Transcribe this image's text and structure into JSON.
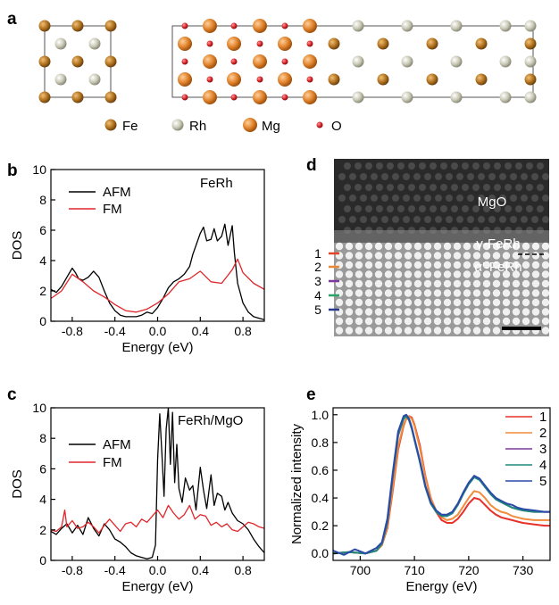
{
  "panels": {
    "a": "a",
    "b": "b",
    "c": "c",
    "d": "d",
    "e": "e"
  },
  "legend_a": [
    {
      "label": "Fe",
      "color": "#b3741f"
    },
    {
      "label": "Rh",
      "color": "#c8c8b4"
    },
    {
      "label": "Mg",
      "color": "#e0822a"
    },
    {
      "label": "O",
      "color": "#d8262a"
    }
  ],
  "panel_d": {
    "mgo": "MgO",
    "gamma": "γ-FeRh",
    "alpha": "α′-FeRh",
    "layers": [
      {
        "label": "1",
        "color": "#e2462a"
      },
      {
        "label": "2",
        "color": "#e68a3a"
      },
      {
        "label": "3",
        "color": "#7a3a9a"
      },
      {
        "label": "4",
        "color": "#2aa26a"
      },
      {
        "label": "5",
        "color": "#2a3a8a"
      }
    ]
  },
  "chart_data": [
    {
      "panel": "b",
      "type": "line",
      "annotation": "FeRh",
      "xlabel": "Energy (eV)",
      "ylabel": "DOS",
      "xlim": [
        -1.0,
        1.0
      ],
      "ylim": [
        0,
        10
      ],
      "xticks": [
        -0.8,
        -0.4,
        0.0,
        0.4,
        0.8
      ],
      "yticks": [
        0,
        2,
        4,
        6,
        8,
        10
      ],
      "legend_position": "upper-left",
      "series": [
        {
          "name": "AFM",
          "color": "#000000",
          "x": [
            -1.0,
            -0.95,
            -0.9,
            -0.85,
            -0.8,
            -0.77,
            -0.74,
            -0.7,
            -0.65,
            -0.6,
            -0.55,
            -0.5,
            -0.45,
            -0.4,
            -0.35,
            -0.3,
            -0.25,
            -0.2,
            -0.15,
            -0.1,
            -0.05,
            0.0,
            0.05,
            0.1,
            0.15,
            0.2,
            0.25,
            0.3,
            0.33,
            0.36,
            0.4,
            0.43,
            0.46,
            0.5,
            0.53,
            0.56,
            0.6,
            0.63,
            0.66,
            0.7,
            0.72,
            0.75,
            0.8,
            0.85,
            0.9,
            0.95,
            1.0
          ],
          "y": [
            2.1,
            1.9,
            2.3,
            2.9,
            3.5,
            3.2,
            2.8,
            2.7,
            2.9,
            3.3,
            2.9,
            2.0,
            1.2,
            0.7,
            0.4,
            0.3,
            0.3,
            0.3,
            0.4,
            0.6,
            0.5,
            0.9,
            1.5,
            2.2,
            2.6,
            2.8,
            3.1,
            3.6,
            4.4,
            5.0,
            5.8,
            6.2,
            5.3,
            5.4,
            6.1,
            5.3,
            5.6,
            6.4,
            5.0,
            6.3,
            4.5,
            2.5,
            1.2,
            0.6,
            0.3,
            0.2,
            0.1
          ]
        },
        {
          "name": "FM",
          "color": "#e0262a",
          "x": [
            -1.0,
            -0.9,
            -0.8,
            -0.7,
            -0.6,
            -0.5,
            -0.4,
            -0.3,
            -0.2,
            -0.1,
            0.0,
            0.1,
            0.2,
            0.3,
            0.4,
            0.5,
            0.6,
            0.7,
            0.75,
            0.8,
            0.9,
            1.0
          ],
          "y": [
            1.5,
            2.0,
            3.1,
            2.6,
            2.0,
            1.6,
            1.1,
            0.7,
            0.6,
            0.8,
            1.2,
            1.8,
            2.6,
            2.8,
            3.3,
            2.6,
            2.5,
            3.4,
            4.1,
            3.2,
            2.5,
            2.1
          ]
        }
      ]
    },
    {
      "panel": "c",
      "type": "line",
      "annotation": "FeRh/MgO",
      "xlabel": "Energy (eV)",
      "ylabel": "DOS",
      "xlim": [
        -1.0,
        1.0
      ],
      "ylim": [
        0,
        10
      ],
      "xticks": [
        -0.8,
        -0.4,
        0.0,
        0.4,
        0.8
      ],
      "yticks": [
        0,
        2,
        4,
        6,
        8,
        10
      ],
      "legend_position": "middle-left",
      "series": [
        {
          "name": "AFM",
          "color": "#000000",
          "x": [
            -1.0,
            -0.95,
            -0.9,
            -0.85,
            -0.8,
            -0.75,
            -0.7,
            -0.65,
            -0.6,
            -0.55,
            -0.5,
            -0.45,
            -0.4,
            -0.35,
            -0.3,
            -0.25,
            -0.2,
            -0.15,
            -0.1,
            -0.05,
            -0.02,
            0.0,
            0.02,
            0.04,
            0.06,
            0.08,
            0.1,
            0.12,
            0.14,
            0.16,
            0.18,
            0.2,
            0.23,
            0.26,
            0.3,
            0.33,
            0.36,
            0.4,
            0.43,
            0.46,
            0.5,
            0.53,
            0.56,
            0.6,
            0.63,
            0.66,
            0.7,
            0.75,
            0.8,
            0.85,
            0.9,
            0.95,
            1.0
          ],
          "y": [
            1.9,
            1.7,
            2.1,
            2.4,
            1.8,
            2.3,
            1.7,
            2.8,
            2.1,
            1.6,
            2.4,
            2.0,
            1.4,
            1.2,
            0.9,
            0.5,
            0.3,
            0.2,
            0.1,
            0.2,
            1.0,
            6.6,
            9.6,
            7.0,
            4.2,
            8.6,
            10.0,
            6.3,
            9.7,
            5.1,
            7.6,
            4.7,
            3.8,
            5.4,
            4.6,
            4.9,
            3.3,
            6.1,
            4.6,
            3.4,
            5.6,
            3.6,
            4.4,
            4.2,
            3.3,
            3.8,
            3.1,
            2.6,
            2.4,
            2.0,
            1.4,
            0.9,
            0.5
          ]
        },
        {
          "name": "FM",
          "color": "#e0262a",
          "x": [
            -1.0,
            -0.95,
            -0.9,
            -0.87,
            -0.85,
            -0.8,
            -0.75,
            -0.7,
            -0.65,
            -0.6,
            -0.55,
            -0.5,
            -0.45,
            -0.4,
            -0.35,
            -0.3,
            -0.25,
            -0.2,
            -0.15,
            -0.1,
            -0.05,
            0.0,
            0.05,
            0.1,
            0.15,
            0.2,
            0.25,
            0.3,
            0.35,
            0.4,
            0.45,
            0.5,
            0.55,
            0.6,
            0.65,
            0.7,
            0.75,
            0.8,
            0.85,
            0.9,
            0.95,
            1.0
          ],
          "y": [
            2.0,
            1.9,
            2.2,
            3.3,
            2.2,
            2.6,
            2.1,
            2.2,
            2.5,
            2.2,
            1.8,
            2.3,
            2.7,
            2.3,
            1.9,
            2.4,
            2.5,
            2.2,
            2.7,
            2.5,
            2.9,
            3.3,
            2.8,
            3.6,
            3.1,
            2.7,
            3.0,
            3.6,
            2.7,
            3.0,
            2.9,
            2.3,
            2.5,
            2.2,
            2.4,
            2.0,
            1.9,
            2.2,
            2.5,
            2.4,
            2.2,
            2.1
          ]
        }
      ]
    },
    {
      "panel": "e",
      "type": "line",
      "xlabel": "Energy (eV)",
      "ylabel": "Normalized intensity",
      "xlim": [
        695,
        735
      ],
      "ylim": [
        -0.05,
        1.05
      ],
      "xticks": [
        700,
        710,
        720,
        730
      ],
      "yticks": [
        0.0,
        0.2,
        0.4,
        0.6,
        0.8,
        1.0
      ],
      "legend_position": "right",
      "series": [
        {
          "name": "1",
          "color": "#e8302a",
          "x": [
            695,
            698,
            701,
            703,
            704,
            705,
            706,
            707,
            708,
            708.5,
            709,
            709.5,
            710,
            711,
            712,
            713,
            714,
            715,
            716,
            717,
            718,
            719,
            720,
            721,
            722,
            723,
            724,
            725,
            726,
            727,
            728,
            729,
            730,
            732,
            734,
            735
          ],
          "y": [
            0.0,
            0.01,
            0.0,
            0.02,
            0.06,
            0.18,
            0.45,
            0.75,
            0.92,
            0.97,
            0.99,
            0.98,
            0.93,
            0.78,
            0.56,
            0.4,
            0.3,
            0.24,
            0.22,
            0.22,
            0.25,
            0.3,
            0.36,
            0.4,
            0.39,
            0.35,
            0.31,
            0.28,
            0.26,
            0.25,
            0.24,
            0.23,
            0.22,
            0.21,
            0.2,
            0.2
          ]
        },
        {
          "name": "2",
          "color": "#f08c3a",
          "x": [
            695,
            698,
            701,
            703,
            704,
            705,
            706,
            707,
            708,
            708.5,
            709,
            709.5,
            710,
            711,
            712,
            713,
            714,
            715,
            716,
            717,
            718,
            719,
            720,
            721,
            722,
            723,
            724,
            725,
            726,
            727,
            728,
            729,
            730,
            732,
            734,
            735
          ],
          "y": [
            0.0,
            0.01,
            0.0,
            0.02,
            0.06,
            0.19,
            0.47,
            0.77,
            0.93,
            0.97,
            0.99,
            0.97,
            0.92,
            0.76,
            0.55,
            0.4,
            0.31,
            0.26,
            0.24,
            0.25,
            0.28,
            0.34,
            0.4,
            0.45,
            0.44,
            0.4,
            0.35,
            0.32,
            0.3,
            0.29,
            0.27,
            0.26,
            0.25,
            0.24,
            0.24,
            0.24
          ]
        },
        {
          "name": "3",
          "color": "#7a3a9a",
          "x": [
            695,
            698,
            701,
            703,
            704,
            705,
            706,
            707,
            708,
            708.5,
            709,
            709.5,
            710,
            711,
            712,
            713,
            714,
            715,
            716,
            717,
            718,
            719,
            720,
            721,
            722,
            723,
            724,
            725,
            726,
            727,
            728,
            729,
            730,
            732,
            734,
            735
          ],
          "y": [
            0.0,
            0.01,
            0.0,
            0.02,
            0.07,
            0.22,
            0.55,
            0.85,
            0.97,
            0.99,
            0.96,
            0.9,
            0.82,
            0.66,
            0.48,
            0.36,
            0.3,
            0.27,
            0.27,
            0.29,
            0.35,
            0.43,
            0.5,
            0.55,
            0.53,
            0.48,
            0.43,
            0.39,
            0.37,
            0.35,
            0.33,
            0.32,
            0.31,
            0.3,
            0.3,
            0.3
          ]
        },
        {
          "name": "4",
          "color": "#1f8a7a",
          "x": [
            695,
            698,
            701,
            703,
            704,
            705,
            706,
            707,
            708,
            708.5,
            709,
            709.5,
            710,
            711,
            712,
            713,
            714,
            715,
            716,
            717,
            718,
            719,
            720,
            721,
            722,
            723,
            724,
            725,
            726,
            727,
            728,
            729,
            730,
            732,
            734,
            735
          ],
          "y": [
            0.0,
            0.01,
            0.0,
            0.02,
            0.07,
            0.23,
            0.56,
            0.86,
            0.97,
            0.99,
            0.96,
            0.9,
            0.82,
            0.66,
            0.48,
            0.36,
            0.3,
            0.27,
            0.27,
            0.29,
            0.35,
            0.43,
            0.5,
            0.55,
            0.53,
            0.48,
            0.43,
            0.39,
            0.37,
            0.35,
            0.33,
            0.32,
            0.31,
            0.3,
            0.3,
            0.3
          ]
        },
        {
          "name": "5",
          "color": "#2a4aa8",
          "x": [
            695,
            697,
            699,
            701,
            703,
            704,
            705,
            706,
            707,
            708,
            708.5,
            709,
            709.5,
            710,
            711,
            712,
            713,
            714,
            715,
            716,
            717,
            718,
            719,
            720,
            721,
            722,
            723,
            724,
            725,
            726,
            727,
            728,
            729,
            730,
            732,
            734,
            735
          ],
          "y": [
            0.02,
            -0.01,
            0.03,
            0.0,
            0.04,
            0.08,
            0.25,
            0.58,
            0.88,
            0.99,
            1.0,
            0.97,
            0.91,
            0.83,
            0.67,
            0.49,
            0.37,
            0.31,
            0.28,
            0.28,
            0.3,
            0.36,
            0.44,
            0.51,
            0.56,
            0.54,
            0.49,
            0.44,
            0.4,
            0.38,
            0.36,
            0.35,
            0.33,
            0.32,
            0.31,
            0.3,
            0.3
          ]
        }
      ]
    }
  ]
}
